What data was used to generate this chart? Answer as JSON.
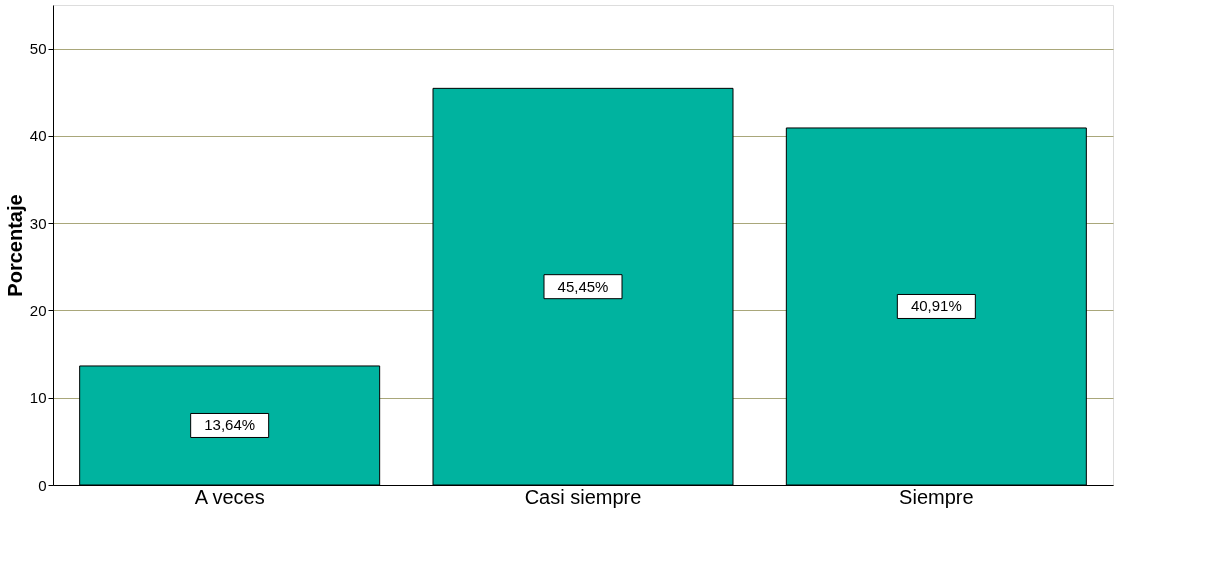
{
  "chart_data": {
    "type": "bar",
    "ylabel": "Porcentaje",
    "categories": [
      "A veces",
      "Casi siempre",
      "Siempre"
    ],
    "values": [
      13.64,
      45.45,
      40.91
    ],
    "value_labels": [
      "13,64%",
      "45,45%",
      "40,91%"
    ],
    "color": "#00b39f",
    "ylim": [
      0,
      55
    ],
    "yticks": [
      0,
      10,
      20,
      30,
      40,
      50
    ],
    "grid": "y"
  }
}
